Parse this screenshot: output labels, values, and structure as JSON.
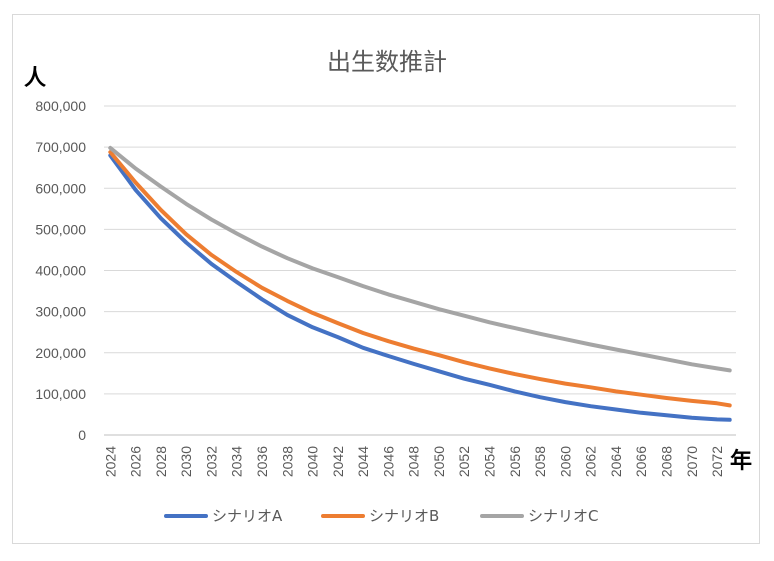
{
  "chart_data": {
    "type": "line",
    "title": "出生数推計",
    "ylabel": "人",
    "xlabel": "年",
    "ylim": [
      0,
      800000
    ],
    "yticks": [
      "0",
      "100,000",
      "200,000",
      "300,000",
      "400,000",
      "500,000",
      "600,000",
      "700,000",
      "800,000"
    ],
    "x": [
      2024,
      2026,
      2028,
      2030,
      2032,
      2034,
      2036,
      2038,
      2040,
      2042,
      2044,
      2046,
      2048,
      2050,
      2052,
      2054,
      2056,
      2058,
      2060,
      2062,
      2064,
      2066,
      2068,
      2070,
      2072,
      2073
    ],
    "xticks": [
      "2024",
      "2026",
      "2028",
      "2030",
      "2032",
      "2034",
      "2036",
      "2038",
      "2040",
      "2042",
      "2044",
      "2046",
      "2048",
      "2050",
      "2052",
      "2054",
      "2056",
      "2058",
      "2060",
      "2062",
      "2064",
      "2066",
      "2068",
      "2070",
      "2072"
    ],
    "grid": true,
    "legend_position": "bottom",
    "series": [
      {
        "name": "シナリオA",
        "color": "#4472c4",
        "values": [
          680000,
          596000,
          527000,
          468000,
          416000,
          372000,
          330000,
          292000,
          262000,
          238000,
          212000,
          192000,
          173000,
          155000,
          137000,
          122000,
          106000,
          92000,
          80000,
          70000,
          62000,
          54000,
          48000,
          42000,
          38000,
          37000
        ]
      },
      {
        "name": "シナリオB",
        "color": "#ed7d31",
        "values": [
          688000,
          614000,
          547000,
          488000,
          438000,
          396000,
          358000,
          326000,
          297000,
          272000,
          248000,
          228000,
          210000,
          194000,
          177000,
          162000,
          148000,
          136000,
          125000,
          116000,
          106000,
          98000,
          90000,
          83000,
          77000,
          72000
        ]
      },
      {
        "name": "シナリオC",
        "color": "#a5a5a5",
        "values": [
          698000,
          648000,
          604000,
          562000,
          524000,
          490000,
          458000,
          430000,
          405000,
          384000,
          362000,
          342000,
          324000,
          306000,
          290000,
          274000,
          260000,
          246000,
          233000,
          220000,
          208000,
          196000,
          184000,
          172000,
          162000,
          157000
        ]
      }
    ]
  }
}
